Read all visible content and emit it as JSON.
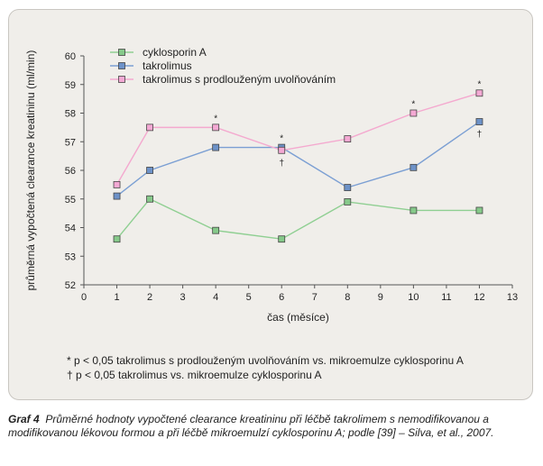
{
  "chart_data": {
    "type": "line",
    "xlabel": "čas (měsíce)",
    "ylabel": "průměrná vypočtená clearance kreatininu (ml/min)",
    "xlim": [
      0,
      13
    ],
    "ylim": [
      52,
      60
    ],
    "xticks": [
      0,
      1,
      2,
      3,
      4,
      5,
      6,
      7,
      8,
      9,
      10,
      11,
      12,
      13
    ],
    "yticks": [
      52,
      53,
      54,
      55,
      56,
      57,
      58,
      59,
      60
    ],
    "x": [
      1,
      2,
      4,
      6,
      8,
      10,
      12
    ],
    "series": [
      {
        "name": "cyklosporin A",
        "color": "#86c98a",
        "line": "#8fcf92",
        "values": [
          53.6,
          55.0,
          53.9,
          53.6,
          54.9,
          54.6,
          54.6
        ]
      },
      {
        "name": "takrolimus",
        "color": "#6d92c8",
        "line": "#7b9fd3",
        "values": [
          55.1,
          56.0,
          56.8,
          56.8,
          55.4,
          56.1,
          57.7
        ]
      },
      {
        "name": "takrolimus s prodlouženým uvolňováním",
        "color": "#f4a9d4",
        "line": "#f4a9cf",
        "values": [
          55.5,
          57.5,
          57.5,
          56.7,
          57.1,
          58.0,
          58.7
        ]
      }
    ],
    "annotations": [
      {
        "x": 4,
        "y": 57.5,
        "text": "*",
        "pos": "above"
      },
      {
        "x": 6,
        "y": 56.8,
        "text": "*",
        "pos": "above"
      },
      {
        "x": 6,
        "y": 56.7,
        "text": "†",
        "pos": "below"
      },
      {
        "x": 10,
        "y": 58.0,
        "text": "*",
        "pos": "above"
      },
      {
        "x": 12,
        "y": 58.7,
        "text": "*",
        "pos": "above"
      },
      {
        "x": 12,
        "y": 57.7,
        "text": "†",
        "pos": "below"
      }
    ],
    "legend_position": "top-left"
  },
  "notes": {
    "star": "* p < 0,05 takrolimus s prodlouženým uvolňováním vs. mikroemulze cyklosporinu A",
    "dagger": "† p < 0,05 takrolimus vs. mikroemulze cyklosporinu A"
  },
  "caption": {
    "label": "Graf 4",
    "text": "Průměrné hodnoty vypočtené clearance kreatininu při léčbě takrolimem s nemodifikovanou a modifikovanou lékovou formou a při léčbě mikroemulzí cyklosporinu A; podle [39] – Silva, et al., 2007."
  }
}
